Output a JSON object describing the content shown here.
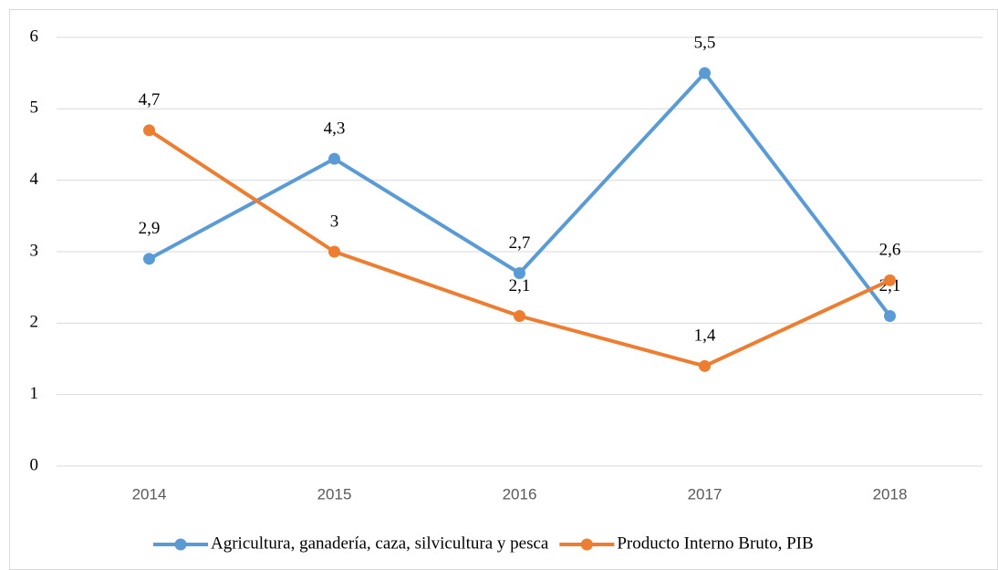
{
  "chart_data": {
    "type": "line",
    "categories": [
      "2014",
      "2015",
      "2016",
      "2017",
      "2018"
    ],
    "series": [
      {
        "name": "Agricultura, ganadería, caza, silvicultura y pesca",
        "color": "#5b9bd5",
        "values": [
          2.9,
          4.3,
          2.7,
          5.5,
          2.1
        ],
        "value_labels": [
          "2,9",
          "4,3",
          "2,7",
          "5,5",
          "2,1"
        ]
      },
      {
        "name": "Producto Interno Bruto, PIB",
        "color": "#ed7d31",
        "values": [
          4.7,
          3,
          2.1,
          1.4,
          2.6
        ],
        "value_labels": [
          "4,7",
          "3",
          "2,1",
          "1,4",
          "2,6"
        ]
      }
    ],
    "ylim": [
      0,
      6
    ],
    "yticks": [
      0,
      1,
      2,
      3,
      4,
      5,
      6
    ],
    "grid": true,
    "legend": "bottom"
  }
}
